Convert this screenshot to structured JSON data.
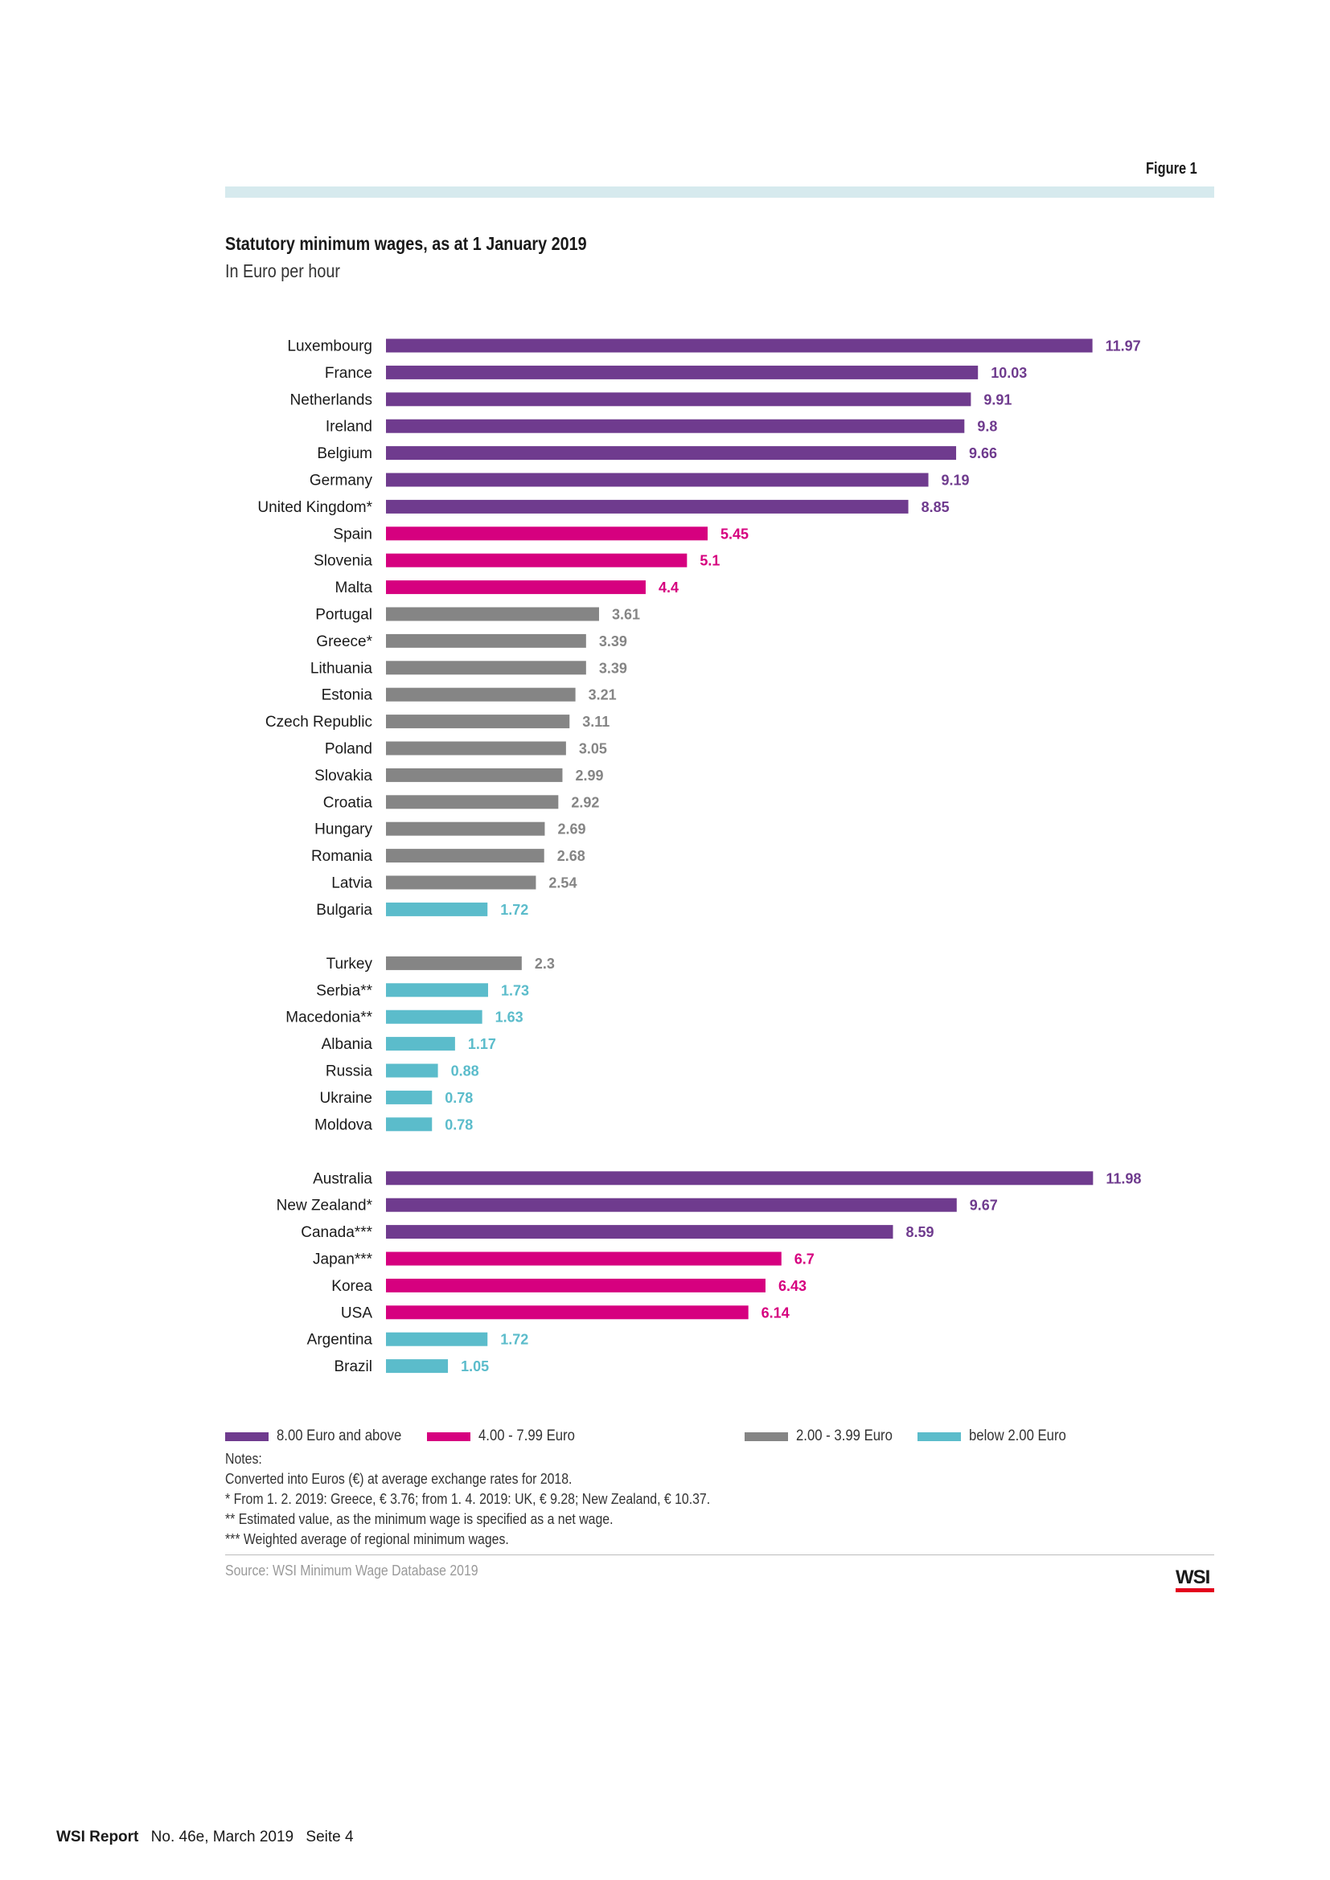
{
  "figure_label": "Figure 1",
  "chart_data": {
    "type": "bar",
    "orientation": "horizontal",
    "title": "Statutory minimum wages, as at 1 January 2019",
    "subtitle": "In Euro per hour",
    "groups": [
      {
        "categories": [
          "Luxembourg",
          "France",
          "Netherlands",
          "Ireland",
          "Belgium",
          "Germany",
          "United Kingdom*",
          "Spain",
          "Slovenia",
          "Malta",
          "Portugal",
          "Greece*",
          "Lithuania",
          "Estonia",
          "Czech Republic",
          "Poland",
          "Slovakia",
          "Croatia",
          "Hungary",
          "Romania",
          "Latvia",
          "Bulgaria"
        ],
        "values": [
          11.97,
          10.03,
          9.91,
          9.8,
          9.66,
          9.19,
          8.85,
          5.45,
          5.1,
          4.4,
          3.61,
          3.39,
          3.39,
          3.21,
          3.11,
          3.05,
          2.99,
          2.92,
          2.69,
          2.68,
          2.54,
          1.72
        ],
        "labels": [
          "11.97",
          "10.03",
          "9.91",
          "9.8",
          "9.66",
          "9.19",
          "8.85",
          "5.45",
          "5.1",
          "4.4",
          "3.61",
          "3.39",
          "3.39",
          "3.21",
          "3.11",
          "3.05",
          "2.99",
          "2.92",
          "2.69",
          "2.68",
          "2.54",
          "1.72"
        ]
      },
      {
        "categories": [
          "Turkey",
          "Serbia**",
          "Macedonia**",
          "Albania",
          "Russia",
          "Ukraine",
          "Moldova"
        ],
        "values": [
          2.3,
          1.73,
          1.63,
          1.17,
          0.88,
          0.78,
          0.78
        ],
        "labels": [
          "2.3",
          "1.73",
          "1.63",
          "1.17",
          "0.88",
          "0.78",
          "0.78"
        ]
      },
      {
        "categories": [
          "Australia",
          "New Zealand*",
          "Canada***",
          "Japan***",
          "Korea",
          "USA",
          "Argentina",
          "Brazil"
        ],
        "values": [
          11.98,
          9.67,
          8.59,
          6.7,
          6.43,
          6.14,
          1.72,
          1.05
        ],
        "labels": [
          "11.98",
          "9.67",
          "8.59",
          "6.7",
          "6.43",
          "6.14",
          "1.72",
          "1.05"
        ]
      }
    ],
    "color_bands": [
      {
        "label": "8.00 Euro and above",
        "min": 8.0,
        "color": "#6f3b8e"
      },
      {
        "label": "4.00 - 7.99 Euro",
        "min": 4.0,
        "color": "#d6007f"
      },
      {
        "label": "2.00 - 3.99 Euro",
        "min": 2.0,
        "color": "#858585"
      },
      {
        "label": "below 2.00 Euro",
        "min": 0.0,
        "color": "#5bbccb"
      }
    ],
    "xlim": [
      0,
      12
    ],
    "grid": false,
    "legend_position": "bottom"
  },
  "notes": {
    "heading": "Notes:",
    "lines": [
      "Converted into Euros (€) at average exchange rates for 2018.",
      "* From 1. 2. 2019: Greece, € 3.76; from 1. 4. 2019: UK, € 9.28; New Zealand, € 10.37.",
      "** Estimated value, as the minimum wage is specified as a net wage.",
      "*** Weighted average of regional minimum wages."
    ]
  },
  "source": "Source: WSI Minimum Wage Database 2019",
  "logo_text": "WSI",
  "footer": {
    "brand": "WSI Report",
    "issue": "No. 46e, March 2019",
    "page": "Seite 4"
  }
}
